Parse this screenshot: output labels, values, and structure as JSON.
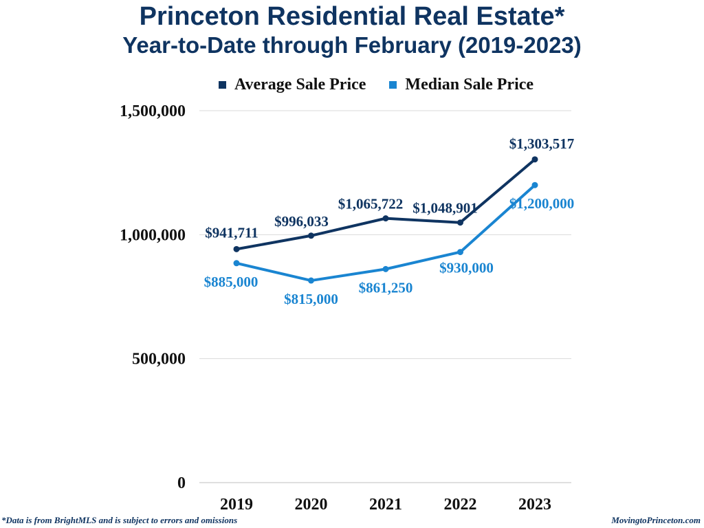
{
  "chart_data": {
    "type": "line",
    "title": "Princeton Residential Real Estate*",
    "subtitle": "Year-to-Date through February (2019-2023)",
    "xlabel": "",
    "ylabel": "",
    "categories": [
      "2019",
      "2020",
      "2021",
      "2022",
      "2023"
    ],
    "ylim": [
      0,
      1500000
    ],
    "yticks": [
      0,
      500000,
      1000000,
      1500000
    ],
    "ytick_labels": [
      "0",
      "500,000",
      "1,000,000",
      "1,500,000"
    ],
    "grid": true,
    "legend_position": "top",
    "series": [
      {
        "name": "Average Sale Price",
        "color": "#0f3461",
        "values": [
          941711,
          996033,
          1065722,
          1048901,
          1303517
        ],
        "labels": [
          "$941,711",
          "$996,033",
          "$1,065,722",
          "$1,048,901",
          "$1,303,517"
        ],
        "label_position": "above"
      },
      {
        "name": "Median Sale Price",
        "color": "#1a85d1",
        "values": [
          885000,
          815000,
          861250,
          930000,
          1200000
        ],
        "labels": [
          "$885,000",
          "$815,000",
          "$861,250",
          "$930,000",
          "$1,200,000"
        ],
        "label_position": "below"
      }
    ]
  },
  "footnote": "*Data is from BrightMLS and is subject to errors and omissions",
  "site": "MovingtoPrinceton.com"
}
